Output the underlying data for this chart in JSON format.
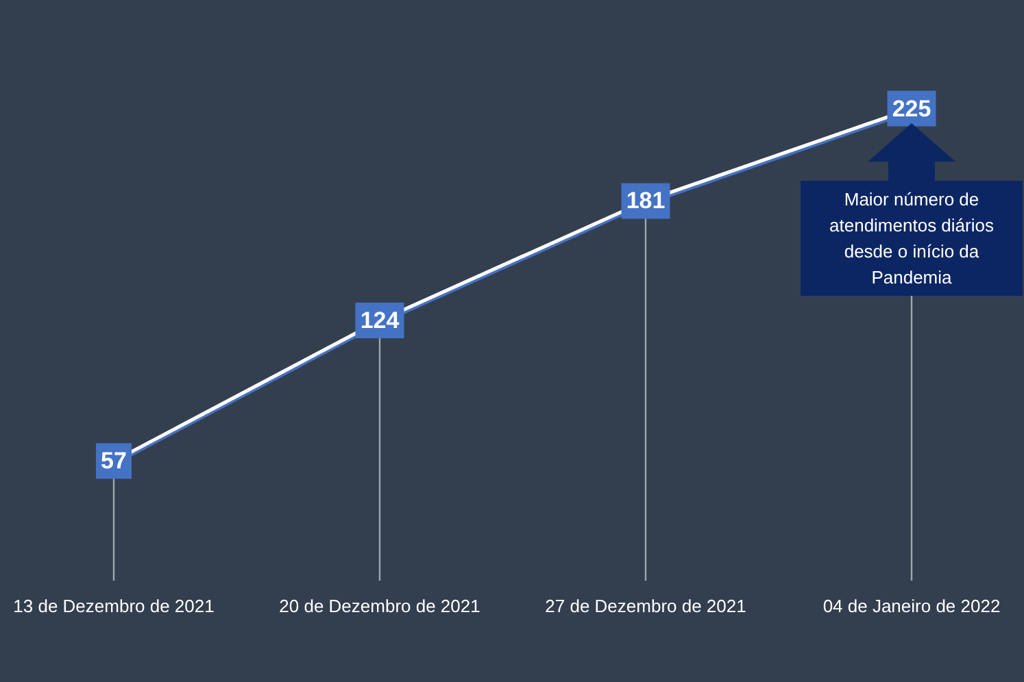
{
  "chart_data": {
    "type": "line",
    "categories": [
      "13 de Dezembro de 2021",
      "20 de Dezembro de 2021",
      "27 de Dezembro de 2021",
      "04 de Janeiro de 2022"
    ],
    "values": [
      57,
      124,
      181,
      225
    ],
    "color": "#ffffff",
    "data_labels": true,
    "tick_labels": "x",
    "grid": "x",
    "marker": "square",
    "annotations": [
      "Maior número de atendimentos diários desde o início da Pandemia"
    ]
  }
}
